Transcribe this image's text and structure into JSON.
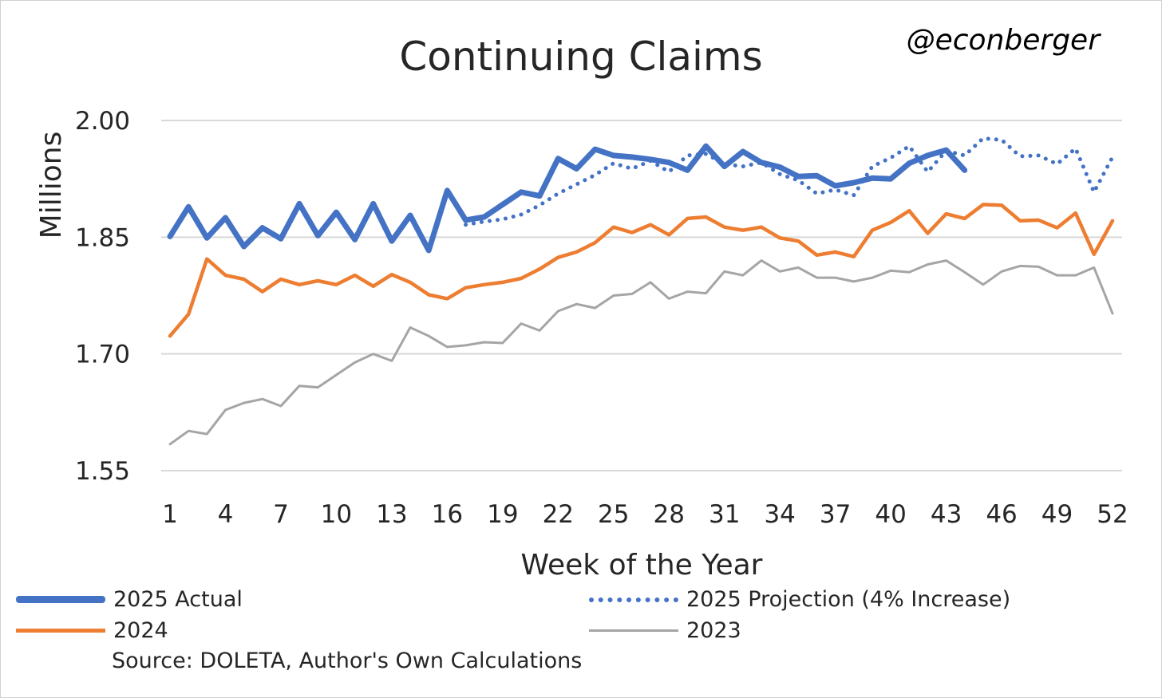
{
  "chart_data": {
    "type": "line",
    "title": "Continuing Claims",
    "handle": "@econberger",
    "xlabel": "Week of the Year",
    "ylabel": "Millions",
    "ylim": [
      1.55,
      2.0
    ],
    "yticks": [
      "1.55",
      "1.70",
      "1.85",
      "2.00"
    ],
    "ytick_values": [
      1.55,
      1.7,
      1.85,
      2.0
    ],
    "xlim": [
      1,
      52
    ],
    "xticks": [
      "1",
      "4",
      "7",
      "10",
      "13",
      "16",
      "19",
      "22",
      "25",
      "28",
      "31",
      "34",
      "37",
      "40",
      "43",
      "46",
      "49",
      "52"
    ],
    "source": "Source: DOLETA, Author's Own Calculations",
    "series": [
      {
        "name": "2023",
        "color": "#a5a5a5",
        "style": "solid",
        "x": [
          1,
          2,
          3,
          4,
          5,
          6,
          7,
          8,
          9,
          10,
          11,
          12,
          13,
          14,
          15,
          16,
          17,
          18,
          19,
          20,
          21,
          22,
          23,
          24,
          25,
          26,
          27,
          28,
          29,
          30,
          31,
          32,
          33,
          34,
          35,
          36,
          37,
          38,
          39,
          40,
          41,
          42,
          43,
          44,
          45,
          46,
          47,
          48,
          49,
          50,
          51,
          52
        ],
        "values": [
          1.584,
          1.601,
          1.597,
          1.628,
          1.637,
          1.642,
          1.633,
          1.659,
          1.657,
          1.673,
          1.689,
          1.7,
          1.691,
          1.734,
          1.723,
          1.709,
          1.711,
          1.715,
          1.714,
          1.739,
          1.73,
          1.755,
          1.764,
          1.759,
          1.775,
          1.777,
          1.792,
          1.771,
          1.78,
          1.778,
          1.806,
          1.801,
          1.82,
          1.806,
          1.811,
          1.798,
          1.798,
          1.793,
          1.798,
          1.807,
          1.805,
          1.815,
          1.82,
          1.805,
          1.789,
          1.806,
          1.813,
          1.812,
          1.801,
          1.801,
          1.811,
          1.752
        ]
      },
      {
        "name": "2024",
        "color": "#ed7d31",
        "style": "solid",
        "x": [
          1,
          2,
          3,
          4,
          5,
          6,
          7,
          8,
          9,
          10,
          11,
          12,
          13,
          14,
          15,
          16,
          17,
          18,
          19,
          20,
          21,
          22,
          23,
          24,
          25,
          26,
          27,
          28,
          29,
          30,
          31,
          32,
          33,
          34,
          35,
          36,
          37,
          38,
          39,
          40,
          41,
          42,
          43,
          44,
          45,
          46,
          47,
          48,
          49,
          50,
          51,
          52
        ],
        "values": [
          1.723,
          1.751,
          1.822,
          1.801,
          1.796,
          1.78,
          1.796,
          1.789,
          1.794,
          1.789,
          1.801,
          1.787,
          1.802,
          1.792,
          1.776,
          1.771,
          1.785,
          1.789,
          1.792,
          1.797,
          1.809,
          1.824,
          1.831,
          1.843,
          1.863,
          1.856,
          1.866,
          1.853,
          1.874,
          1.876,
          1.863,
          1.859,
          1.863,
          1.849,
          1.845,
          1.827,
          1.831,
          1.825,
          1.859,
          1.869,
          1.884,
          1.855,
          1.88,
          1.874,
          1.892,
          1.891,
          1.871,
          1.872,
          1.862,
          1.881,
          1.828,
          1.871
        ]
      },
      {
        "name": "2025 Projection (4% Increase)",
        "color": "#4472c4",
        "style": "dotted",
        "x": [
          17,
          18,
          19,
          20,
          21,
          22,
          23,
          24,
          25,
          26,
          27,
          28,
          29,
          30,
          31,
          32,
          33,
          34,
          35,
          36,
          37,
          38,
          39,
          40,
          41,
          42,
          43,
          44,
          45,
          46,
          47,
          48,
          49,
          50,
          51,
          52
        ],
        "values": [
          1.866,
          1.87,
          1.873,
          1.879,
          1.891,
          1.906,
          1.918,
          1.93,
          1.945,
          1.938,
          1.948,
          1.934,
          1.955,
          1.957,
          1.944,
          1.941,
          1.946,
          1.931,
          1.923,
          1.906,
          1.911,
          1.904,
          1.941,
          1.952,
          1.967,
          1.934,
          1.961,
          1.955,
          1.977,
          1.975,
          1.954,
          1.955,
          1.944,
          1.964,
          1.908,
          1.953
        ]
      },
      {
        "name": "2025 Actual",
        "color": "#4472c4",
        "style": "solid-thick",
        "x": [
          1,
          2,
          3,
          4,
          5,
          6,
          7,
          8,
          9,
          10,
          11,
          12,
          13,
          14,
          15,
          16,
          17,
          18,
          19,
          20,
          21,
          22,
          23,
          24,
          25,
          26,
          27,
          28,
          29,
          30,
          31,
          32,
          33,
          34,
          35,
          36,
          37,
          38,
          39,
          40,
          41,
          42,
          43,
          44
        ],
        "values": [
          1.851,
          1.889,
          1.849,
          1.875,
          1.838,
          1.862,
          1.848,
          1.893,
          1.852,
          1.882,
          1.847,
          1.893,
          1.845,
          1.878,
          1.833,
          1.91,
          1.872,
          1.876,
          1.892,
          1.908,
          1.903,
          1.951,
          1.938,
          1.963,
          1.955,
          1.953,
          1.95,
          1.946,
          1.936,
          1.967,
          1.941,
          1.96,
          1.946,
          1.94,
          1.928,
          1.929,
          1.916,
          1.92,
          1.926,
          1.925,
          1.945,
          1.955,
          1.962,
          1.936
        ]
      }
    ],
    "legend": [
      {
        "label": "2025 Actual",
        "color": "#4472c4",
        "style": "solid-thick"
      },
      {
        "label": "2025 Projection (4% Increase)",
        "color": "#4472c4",
        "style": "dotted"
      },
      {
        "label": "2024",
        "color": "#ed7d31",
        "style": "solid"
      },
      {
        "label": "2023",
        "color": "#a5a5a5",
        "style": "solid"
      }
    ]
  }
}
